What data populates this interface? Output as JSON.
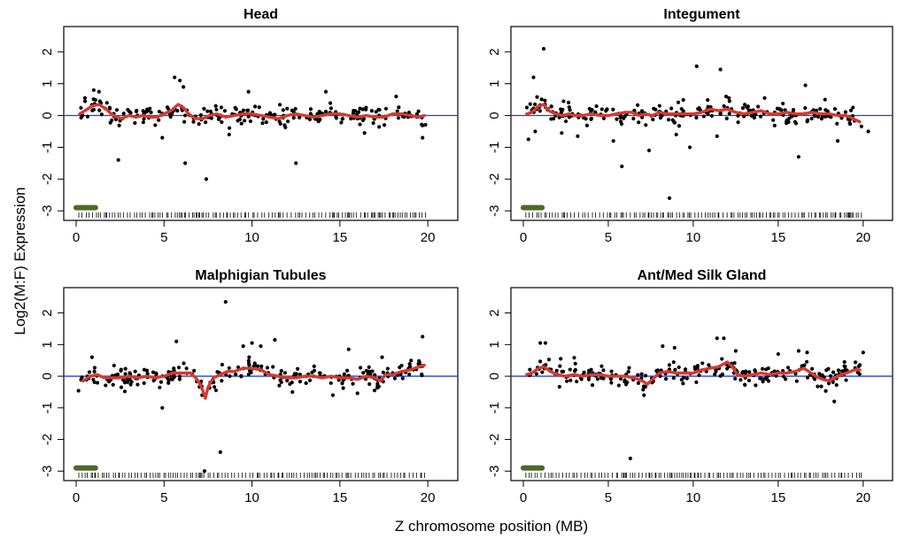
{
  "figure": {
    "ylabel": "Log2(M:F) Expression",
    "xlabel": "Z chromosome position (MB)"
  },
  "chart_data": [
    {
      "type": "scatter",
      "title": "Head",
      "xlim": [
        0,
        21
      ],
      "ylim": [
        -3.3,
        2.8
      ],
      "xticks": [
        0,
        5,
        10,
        15,
        20
      ],
      "yticks": [
        -3,
        -2,
        -1,
        0,
        1,
        2
      ],
      "reference_line_y": 0,
      "highlight_segment": {
        "x": [
          0,
          1.1
        ],
        "y": -2.9,
        "color": "#4a6b25"
      },
      "trend": {
        "color": "#d63a2f",
        "points": [
          [
            0.2,
            0.05
          ],
          [
            0.5,
            0.15
          ],
          [
            0.9,
            0.3
          ],
          [
            1.3,
            0.35
          ],
          [
            1.7,
            0.2
          ],
          [
            2.0,
            0.05
          ],
          [
            2.3,
            -0.05
          ],
          [
            2.6,
            -0.1
          ],
          [
            3.0,
            0
          ],
          [
            3.4,
            -0.05
          ],
          [
            3.8,
            0
          ],
          [
            4.2,
            -0.05
          ],
          [
            4.6,
            -0.05
          ],
          [
            5.0,
            0.05
          ],
          [
            5.4,
            0.15
          ],
          [
            5.8,
            0.35
          ],
          [
            6.1,
            0.25
          ],
          [
            6.4,
            0.05
          ],
          [
            6.8,
            -0.1
          ],
          [
            7.2,
            -0.1
          ],
          [
            7.6,
            0
          ],
          [
            8.0,
            0.05
          ],
          [
            8.5,
            -0.05
          ],
          [
            9.0,
            0
          ],
          [
            9.5,
            0.05
          ],
          [
            10.0,
            0.05
          ],
          [
            10.5,
            0
          ],
          [
            11.0,
            -0.05
          ],
          [
            11.5,
            -0.1
          ],
          [
            12.0,
            0
          ],
          [
            12.5,
            0.05
          ],
          [
            13.0,
            0
          ],
          [
            13.5,
            -0.05
          ],
          [
            14.0,
            0
          ],
          [
            14.5,
            0.05
          ],
          [
            15.0,
            0.05
          ],
          [
            15.5,
            0
          ],
          [
            16.0,
            -0.05
          ],
          [
            16.5,
            0
          ],
          [
            17.0,
            -0.05
          ],
          [
            17.5,
            -0.05
          ],
          [
            18.0,
            0.05
          ],
          [
            18.5,
            0.05
          ],
          [
            19.0,
            0
          ],
          [
            19.5,
            -0.05
          ],
          [
            19.8,
            0
          ]
        ]
      },
      "outliers": [
        [
          0.5,
          0.55
        ],
        [
          1.0,
          0.8
        ],
        [
          1.3,
          0.75
        ],
        [
          2.4,
          -1.4
        ],
        [
          4.9,
          -0.7
        ],
        [
          5.6,
          1.2
        ],
        [
          5.9,
          1.1
        ],
        [
          6.1,
          0.9
        ],
        [
          6.2,
          -1.5
        ],
        [
          7.4,
          -2.0
        ],
        [
          12.5,
          -1.5
        ],
        [
          8.7,
          -0.6
        ],
        [
          9.8,
          0.75
        ],
        [
          14.2,
          0.75
        ],
        [
          16.4,
          -0.55
        ],
        [
          18.2,
          0.6
        ],
        [
          19.7,
          -0.7
        ]
      ]
    },
    {
      "type": "scatter",
      "title": "Integument",
      "xlim": [
        0,
        21
      ],
      "ylim": [
        -3.3,
        2.8
      ],
      "xticks": [
        0,
        5,
        10,
        15,
        20
      ],
      "yticks": [
        -3,
        -2,
        -1,
        0,
        1,
        2
      ],
      "reference_line_y": 0,
      "highlight_segment": {
        "x": [
          0,
          1.1
        ],
        "y": -2.9,
        "color": "#4a6b25"
      },
      "trend": {
        "color": "#d63a2f",
        "points": [
          [
            0.2,
            0.05
          ],
          [
            0.5,
            0.1
          ],
          [
            0.9,
            0.3
          ],
          [
            1.2,
            0.35
          ],
          [
            1.5,
            0.15
          ],
          [
            1.9,
            0.05
          ],
          [
            2.3,
            0
          ],
          [
            2.7,
            0.05
          ],
          [
            3.0,
            0
          ],
          [
            3.5,
            0
          ],
          [
            4.0,
            0.05
          ],
          [
            4.5,
            0
          ],
          [
            5.0,
            0
          ],
          [
            5.5,
            0.05
          ],
          [
            6.0,
            0.1
          ],
          [
            6.4,
            0.1
          ],
          [
            6.8,
            0
          ],
          [
            7.2,
            0.05
          ],
          [
            7.6,
            0
          ],
          [
            8.0,
            0.1
          ],
          [
            8.5,
            0.05
          ],
          [
            9.0,
            0.05
          ],
          [
            9.5,
            0.05
          ],
          [
            10.0,
            0.05
          ],
          [
            10.5,
            0.1
          ],
          [
            11.0,
            0.2
          ],
          [
            11.5,
            0.15
          ],
          [
            12.0,
            0.2
          ],
          [
            12.5,
            0.1
          ],
          [
            13.0,
            0.05
          ],
          [
            13.5,
            0.1
          ],
          [
            14.0,
            0.15
          ],
          [
            14.5,
            0.05
          ],
          [
            15.0,
            0.05
          ],
          [
            15.5,
            0.1
          ],
          [
            16.0,
            0.05
          ],
          [
            16.5,
            0.05
          ],
          [
            17.0,
            0.1
          ],
          [
            17.5,
            0.05
          ],
          [
            18.0,
            0.05
          ],
          [
            18.5,
            0
          ],
          [
            19.0,
            0
          ],
          [
            19.4,
            -0.1
          ],
          [
            19.8,
            -0.2
          ]
        ]
      },
      "outliers": [
        [
          0.3,
          -0.75
        ],
        [
          0.6,
          1.2
        ],
        [
          0.7,
          -0.5
        ],
        [
          1.2,
          2.1
        ],
        [
          3.2,
          -0.65
        ],
        [
          5.3,
          -0.8
        ],
        [
          5.8,
          -1.6
        ],
        [
          7.4,
          -1.1
        ],
        [
          8.6,
          -2.6
        ],
        [
          9.0,
          -0.6
        ],
        [
          9.8,
          -1.0
        ],
        [
          10.2,
          1.55
        ],
        [
          11.4,
          -0.65
        ],
        [
          11.6,
          1.45
        ],
        [
          12.1,
          0.55
        ],
        [
          14.2,
          0.55
        ],
        [
          16.2,
          -1.3
        ],
        [
          16.6,
          0.95
        ],
        [
          18.5,
          -0.8
        ],
        [
          19.4,
          0.25
        ],
        [
          20.3,
          -0.5
        ]
      ]
    },
    {
      "type": "scatter",
      "title": "Malphigian Tubules",
      "xlim": [
        0,
        21
      ],
      "ylim": [
        -3.3,
        2.8
      ],
      "xticks": [
        0,
        5,
        10,
        15,
        20
      ],
      "yticks": [
        -3,
        -2,
        -1,
        0,
        1,
        2
      ],
      "reference_line_y": 0,
      "highlight_segment": {
        "x": [
          0,
          1.1
        ],
        "y": -2.9,
        "color": "#4a6b25"
      },
      "trend": {
        "color": "#d63a2f",
        "points": [
          [
            0.4,
            -0.15
          ],
          [
            0.8,
            0
          ],
          [
            1.2,
            0.05
          ],
          [
            1.6,
            -0.05
          ],
          [
            2.0,
            -0.05
          ],
          [
            2.5,
            -0.05
          ],
          [
            3.0,
            0
          ],
          [
            3.5,
            -0.05
          ],
          [
            4.0,
            0
          ],
          [
            4.5,
            -0.05
          ],
          [
            5.0,
            0
          ],
          [
            5.5,
            0.1
          ],
          [
            6.0,
            0.1
          ],
          [
            6.5,
            0.1
          ],
          [
            6.8,
            -0.05
          ],
          [
            7.0,
            -0.2
          ],
          [
            7.2,
            -0.45
          ],
          [
            7.35,
            -0.7
          ],
          [
            7.5,
            -0.35
          ],
          [
            7.8,
            -0.05
          ],
          [
            8.2,
            0.05
          ],
          [
            8.6,
            0.15
          ],
          [
            9.0,
            0.15
          ],
          [
            9.5,
            0.25
          ],
          [
            10.0,
            0.25
          ],
          [
            10.5,
            0.2
          ],
          [
            11.0,
            0.05
          ],
          [
            11.5,
            0
          ],
          [
            12.0,
            -0.05
          ],
          [
            12.5,
            -0.05
          ],
          [
            13.0,
            0
          ],
          [
            13.5,
            0
          ],
          [
            14.0,
            -0.05
          ],
          [
            14.5,
            0
          ],
          [
            15.0,
            -0.05
          ],
          [
            15.5,
            -0.05
          ],
          [
            16.0,
            -0.1
          ],
          [
            16.5,
            0
          ],
          [
            17.0,
            -0.05
          ],
          [
            17.3,
            -0.15
          ],
          [
            17.6,
            0.05
          ],
          [
            18.0,
            0.05
          ],
          [
            18.5,
            0.15
          ],
          [
            19.0,
            0.2
          ],
          [
            19.5,
            0.3
          ],
          [
            19.8,
            0.35
          ]
        ]
      },
      "outliers": [
        [
          0.9,
          0.6
        ],
        [
          4.9,
          -1.0
        ],
        [
          5.7,
          1.1
        ],
        [
          7.3,
          -3.0
        ],
        [
          8.2,
          -2.4
        ],
        [
          8.5,
          2.35
        ],
        [
          9.5,
          0.95
        ],
        [
          10.0,
          1.05
        ],
        [
          10.5,
          0.95
        ],
        [
          11.3,
          1.15
        ],
        [
          12.3,
          -0.5
        ],
        [
          14.6,
          -0.6
        ],
        [
          15.5,
          0.85
        ],
        [
          17.4,
          0.6
        ],
        [
          19.7,
          1.25
        ]
      ]
    },
    {
      "type": "scatter",
      "title": "Ant/Med Silk Gland",
      "xlim": [
        0,
        21
      ],
      "ylim": [
        -3.3,
        2.8
      ],
      "xticks": [
        0,
        5,
        10,
        15,
        20
      ],
      "yticks": [
        -3,
        -2,
        -1,
        0,
        1,
        2
      ],
      "reference_line_y": 0,
      "highlight_segment": {
        "x": [
          0,
          1.1
        ],
        "y": -2.9,
        "color": "#4a6b25"
      },
      "trend": {
        "color": "#d63a2f",
        "points": [
          [
            0.2,
            0.05
          ],
          [
            0.5,
            0.1
          ],
          [
            0.9,
            0.25
          ],
          [
            1.2,
            0.3
          ],
          [
            1.6,
            0.15
          ],
          [
            2.0,
            0.05
          ],
          [
            2.5,
            0
          ],
          [
            3.0,
            0.05
          ],
          [
            3.5,
            0
          ],
          [
            4.0,
            0.05
          ],
          [
            4.5,
            0.05
          ],
          [
            5.0,
            0
          ],
          [
            5.5,
            0
          ],
          [
            6.0,
            0
          ],
          [
            6.5,
            -0.05
          ],
          [
            7.0,
            -0.15
          ],
          [
            7.3,
            -0.25
          ],
          [
            7.6,
            -0.1
          ],
          [
            8.0,
            0.1
          ],
          [
            8.5,
            0.15
          ],
          [
            9.0,
            0.1
          ],
          [
            9.5,
            0.1
          ],
          [
            10.0,
            0.1
          ],
          [
            10.5,
            0.2
          ],
          [
            11.0,
            0.25
          ],
          [
            11.5,
            0.3
          ],
          [
            12.0,
            0.45
          ],
          [
            12.3,
            0.3
          ],
          [
            12.6,
            0.05
          ],
          [
            13.0,
            0
          ],
          [
            13.5,
            0.05
          ],
          [
            14.0,
            0.1
          ],
          [
            14.5,
            0.05
          ],
          [
            15.0,
            0.1
          ],
          [
            15.5,
            0.1
          ],
          [
            16.0,
            0.15
          ],
          [
            16.5,
            0.25
          ],
          [
            16.8,
            0.15
          ],
          [
            17.2,
            0
          ],
          [
            17.6,
            -0.1
          ],
          [
            18.0,
            -0.15
          ],
          [
            18.5,
            0
          ],
          [
            19.0,
            0.1
          ],
          [
            19.5,
            0.2
          ],
          [
            19.8,
            0.2
          ]
        ]
      },
      "outliers": [
        [
          1.0,
          1.05
        ],
        [
          1.3,
          1.05
        ],
        [
          2.2,
          0.55
        ],
        [
          6.3,
          -2.6
        ],
        [
          7.1,
          -0.6
        ],
        [
          8.2,
          0.95
        ],
        [
          8.9,
          0.9
        ],
        [
          11.4,
          1.2
        ],
        [
          11.8,
          1.2
        ],
        [
          12.5,
          0.8
        ],
        [
          15.0,
          0.7
        ],
        [
          16.2,
          0.8
        ],
        [
          16.7,
          0.75
        ],
        [
          18.3,
          -0.8
        ],
        [
          18.9,
          0.45
        ],
        [
          20.0,
          0.75
        ]
      ]
    }
  ]
}
